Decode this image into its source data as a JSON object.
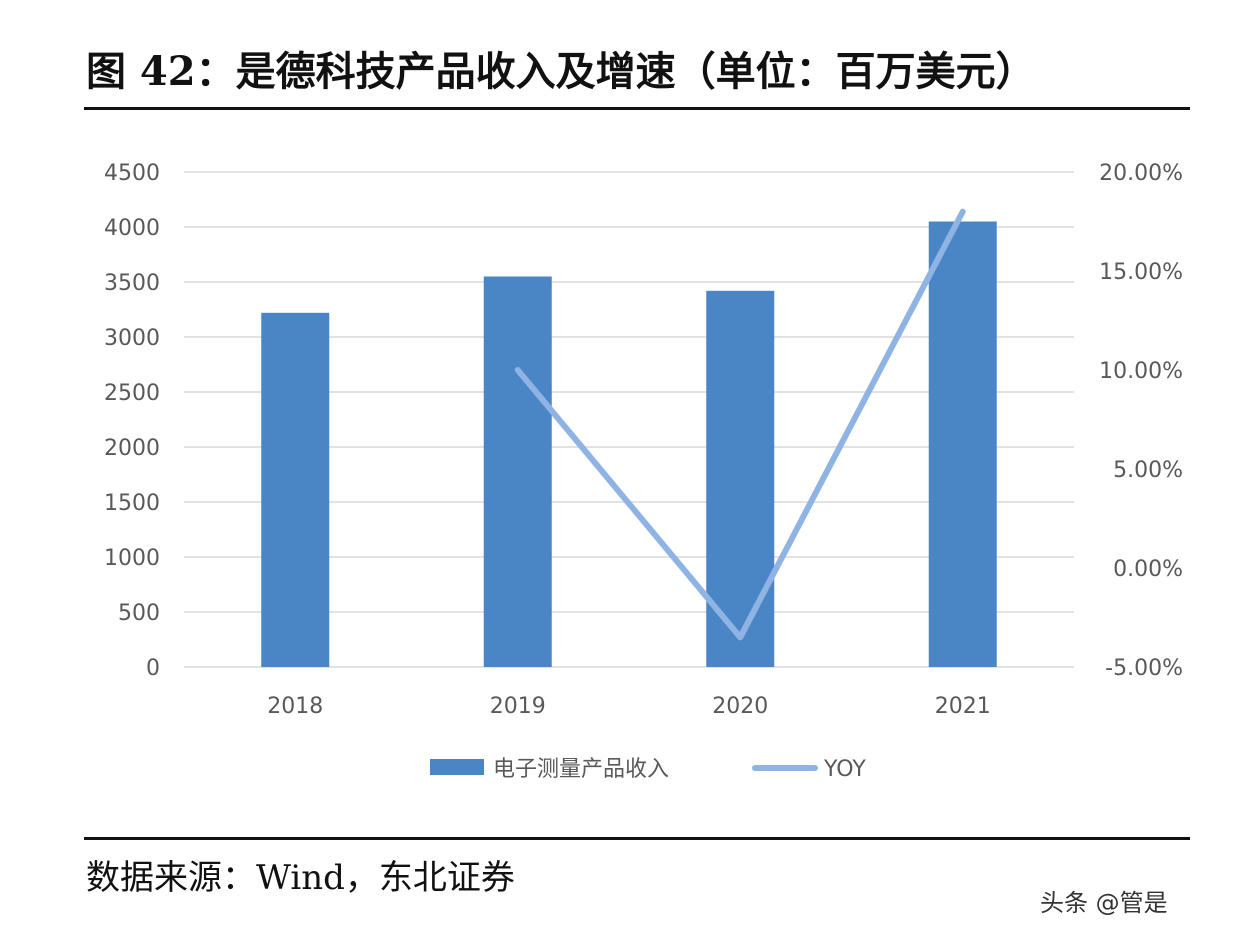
{
  "figure": {
    "title": "图  42：是德科技产品收入及增速（单位：百万美元）",
    "source": "数据来源：Wind，东北证券",
    "watermark": "头条 @管是"
  },
  "chart_data": {
    "type": "bar",
    "title": "图  42：是德科技产品收入及增速（单位：百万美元）",
    "categories": [
      "2018",
      "2019",
      "2020",
      "2021"
    ],
    "series": [
      {
        "name": "电子测量产品收入",
        "type": "bar",
        "axis": "left",
        "color": "#4a86c6",
        "values": [
          3220,
          3550,
          3420,
          4050
        ]
      },
      {
        "name": "YOY",
        "type": "line",
        "axis": "right",
        "color": "#8fb4e3",
        "values": [
          null,
          0.1,
          -0.035,
          0.18
        ]
      }
    ],
    "y_left": {
      "min": 0,
      "max": 4500,
      "ticks": [
        0,
        500,
        1000,
        1500,
        2000,
        2500,
        3000,
        3500,
        4000,
        4500
      ],
      "tick_labels": [
        "0",
        "500",
        "1000",
        "1500",
        "2000",
        "2500",
        "3000",
        "3500",
        "4000",
        "4500"
      ]
    },
    "y_right": {
      "min": -0.05,
      "max": 0.2,
      "ticks": [
        -0.05,
        0,
        0.05,
        0.1,
        0.15,
        0.2
      ],
      "tick_labels": [
        "-5.00%",
        "0.00%",
        "5.00%",
        "10.00%",
        "15.00%",
        "20.00%"
      ]
    },
    "grid": true,
    "legend": "bottom",
    "gridline_color": "#d9d9d9",
    "tick_color": "#595959"
  }
}
